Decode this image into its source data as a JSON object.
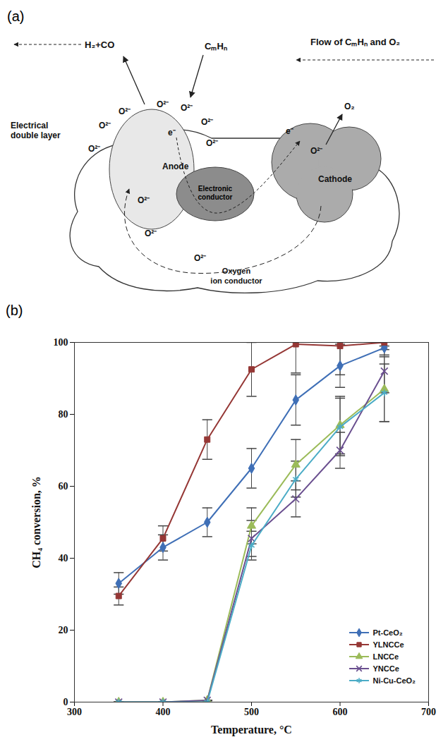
{
  "diagram": {
    "panel_label": "(a)",
    "products": "H₂+CO",
    "fuel": "CₘHₙ",
    "flow": "Flow of CₘHₙ and O₂",
    "double_layer": "Electrical double layer",
    "anode": "Anode",
    "electronic_conductor": "Electronic conductor",
    "cathode": "Cathode",
    "oxygen_out": "O₂",
    "electrolyte": "Oxygen ion conductor",
    "electrons": [
      "e⁻",
      "e⁻"
    ],
    "ions": [
      "O²⁻",
      "O²⁻",
      "O²⁻",
      "O²⁻",
      "O²⁻",
      "O²⁻",
      "O²⁻",
      "O²⁻",
      "O²⁻",
      "O²⁻",
      "O²⁻"
    ]
  },
  "chart_data": {
    "type": "line",
    "panel_label": "(b)",
    "x_label": "Temperature, °C",
    "y_label": "CH₄ conversion, %",
    "x": [
      350,
      400,
      450,
      500,
      550,
      600,
      650
    ],
    "xlim": [
      300,
      700
    ],
    "xticks": [
      300,
      400,
      500,
      600,
      700
    ],
    "ylim": [
      0,
      100
    ],
    "yticks": [
      0,
      20,
      40,
      60,
      80,
      100
    ],
    "grid": false,
    "legend": "lower right",
    "series": [
      {
        "name": "Pt-CeO₂",
        "color": "#3f6fb6",
        "marker": "diamond",
        "line_style": "solid",
        "values": [
          33,
          43,
          50,
          65,
          84,
          93.5,
          98.5
        ],
        "errors": [
          3,
          3.5,
          4,
          5.5,
          7,
          6,
          2
        ]
      },
      {
        "name": "YLNCCe",
        "color": "#953735",
        "marker": "square",
        "line_style": "solid",
        "values": [
          29.5,
          45.5,
          73,
          92.5,
          99.5,
          99,
          100
        ],
        "errors": [
          2.5,
          3.5,
          5.5,
          7.5,
          8,
          8,
          1
        ]
      },
      {
        "name": "LNCCe",
        "color": "#9bbb59",
        "marker": "triangle",
        "line_style": "solid",
        "values": [
          0,
          0,
          0.5,
          49,
          66,
          77,
          87
        ],
        "errors": [
          0,
          0,
          0,
          5,
          7,
          8,
          9
        ]
      },
      {
        "name": "YNCCe",
        "color": "#6a4f8f",
        "marker": "times",
        "line_style": "solid",
        "values": [
          0,
          0,
          0.5,
          45.5,
          56.5,
          70,
          92
        ],
        "errors": [
          0,
          0,
          0,
          5,
          5,
          5,
          6
        ]
      },
      {
        "name": "Ni-Cu-CeO₂",
        "color": "#4bacc6",
        "marker": "asterisk",
        "line_style": "solid",
        "values": [
          0,
          0,
          0,
          43.5,
          62,
          76.5,
          86
        ],
        "errors": [
          0,
          0,
          0,
          4,
          5,
          8,
          8
        ]
      }
    ]
  }
}
